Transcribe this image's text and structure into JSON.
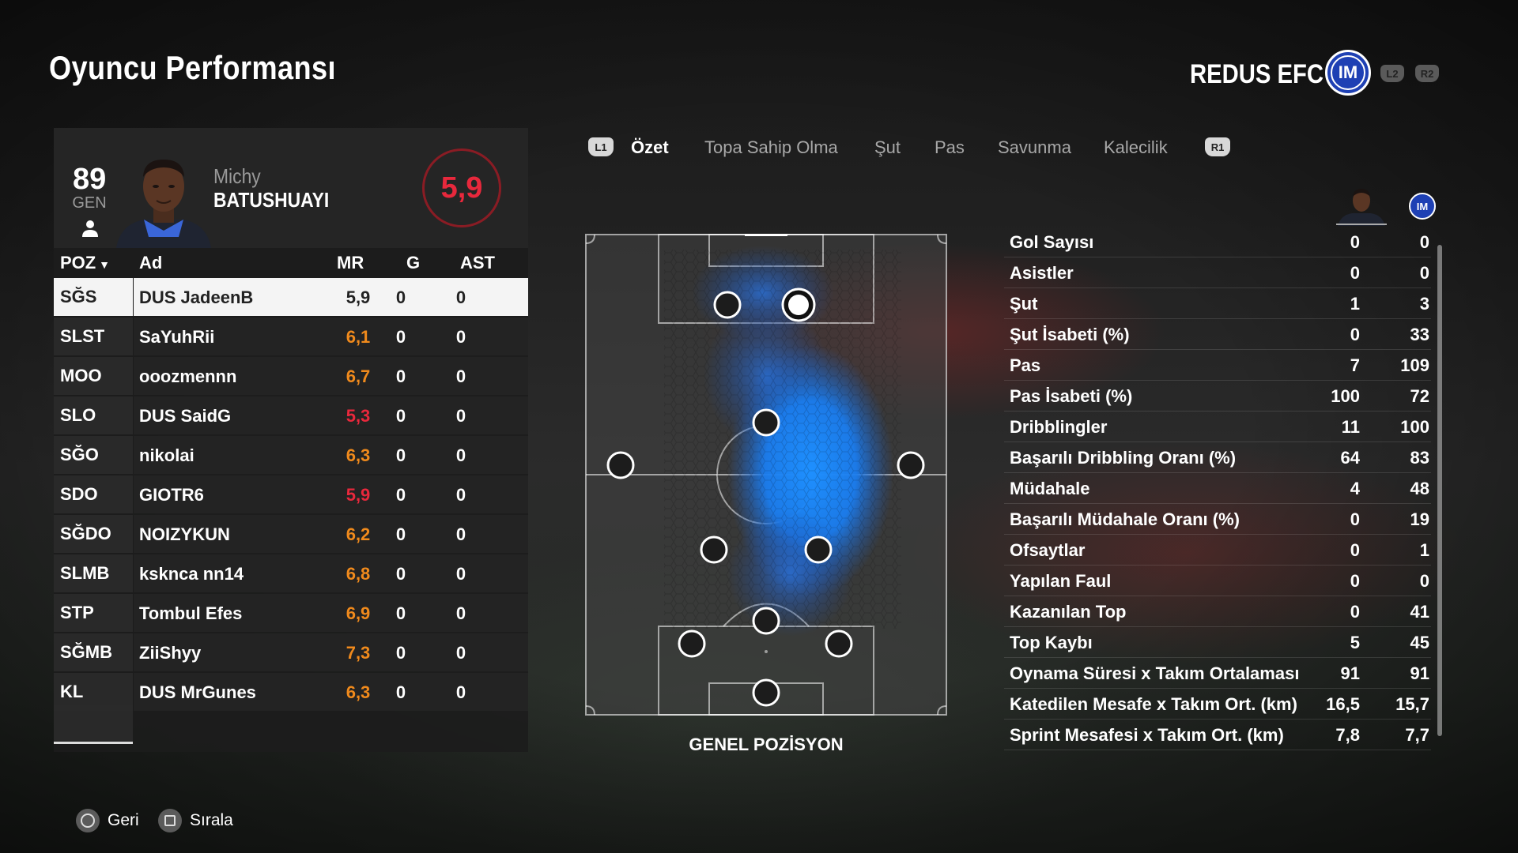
{
  "header": {
    "title": "Oyuncu Performansı",
    "team_name": "REDUS EFC",
    "team_badge_letters": "IM",
    "chip_l2": "L2",
    "chip_r2": "R2"
  },
  "player": {
    "overall": "89",
    "gen_label": "GEN",
    "first_name": "Michy",
    "last_name": "BATUSHUAYI",
    "match_rating": "5,9"
  },
  "table": {
    "headers": {
      "pos": "POZ",
      "name": "Ad",
      "mr": "MR",
      "g": "G",
      "ast": "AST"
    },
    "rows": [
      {
        "pos": "SĞS",
        "name": "DUS JadeenB",
        "mr": "5,9",
        "g": "0",
        "ast": "0",
        "mr_tone": "white"
      },
      {
        "pos": "SLST",
        "name": "SaYuhRii",
        "mr": "6,1",
        "g": "0",
        "ast": "0",
        "mr_tone": "orange"
      },
      {
        "pos": "MOO",
        "name": "ooozmennn",
        "mr": "6,7",
        "g": "0",
        "ast": "0",
        "mr_tone": "orange"
      },
      {
        "pos": "SLO",
        "name": "DUS SaidG",
        "mr": "5,3",
        "g": "0",
        "ast": "0",
        "mr_tone": "red"
      },
      {
        "pos": "SĞO",
        "name": "nikolai",
        "mr": "6,3",
        "g": "0",
        "ast": "0",
        "mr_tone": "orange"
      },
      {
        "pos": "SDO",
        "name": "GIOTR6",
        "mr": "5,9",
        "g": "0",
        "ast": "0",
        "mr_tone": "red"
      },
      {
        "pos": "SĞDO",
        "name": "NOIZYKUN",
        "mr": "6,2",
        "g": "0",
        "ast": "0",
        "mr_tone": "orange"
      },
      {
        "pos": "SLMB",
        "name": "ksknca nn14",
        "mr": "6,8",
        "g": "0",
        "ast": "0",
        "mr_tone": "orange"
      },
      {
        "pos": "STP",
        "name": "Tombul Efes",
        "mr": "6,9",
        "g": "0",
        "ast": "0",
        "mr_tone": "orange"
      },
      {
        "pos": "SĞMB",
        "name": "ZiiShyy",
        "mr": "7,3",
        "g": "0",
        "ast": "0",
        "mr_tone": "orange"
      },
      {
        "pos": "KL",
        "name": "DUS MrGunes",
        "mr": "6,3",
        "g": "0",
        "ast": "0",
        "mr_tone": "orange"
      }
    ]
  },
  "tabs": {
    "l1": "L1",
    "r1": "R1",
    "items": [
      "Özet",
      "Topa Sahip Olma",
      "Şut",
      "Pas",
      "Savunma",
      "Kalecilik"
    ],
    "active_index": 0
  },
  "pitch": {
    "label": "GENEL POZİSYON"
  },
  "stats": [
    {
      "label": "Gol Sayısı",
      "player": "0",
      "team": "0"
    },
    {
      "label": "Asistler",
      "player": "0",
      "team": "0"
    },
    {
      "label": "Şut",
      "player": "1",
      "team": "3"
    },
    {
      "label": "Şut İsabeti (%)",
      "player": "0",
      "team": "33"
    },
    {
      "label": "Pas",
      "player": "7",
      "team": "109"
    },
    {
      "label": "Pas İsabeti (%)",
      "player": "100",
      "team": "72"
    },
    {
      "label": "Dribblingler",
      "player": "11",
      "team": "100"
    },
    {
      "label": "Başarılı Dribbling Oranı (%)",
      "player": "64",
      "team": "83"
    },
    {
      "label": "Müdahale",
      "player": "4",
      "team": "48"
    },
    {
      "label": "Başarılı Müdahale Oranı (%)",
      "player": "0",
      "team": "19"
    },
    {
      "label": "Ofsaytlar",
      "player": "0",
      "team": "1"
    },
    {
      "label": "Yapılan Faul",
      "player": "0",
      "team": "0"
    },
    {
      "label": "Kazanılan Top",
      "player": "0",
      "team": "41"
    },
    {
      "label": "Top Kaybı",
      "player": "5",
      "team": "45"
    },
    {
      "label": "Oynama Süresi x Takım Ortalaması",
      "player": "91",
      "team": "91"
    },
    {
      "label": "Katedilen Mesafe x Takım Ort. (km)",
      "player": "16,5",
      "team": "15,7"
    },
    {
      "label": "Sprint Mesafesi x Takım Ort. (km)",
      "player": "7,8",
      "team": "7,7"
    }
  ],
  "footer": {
    "back_label": "Geri",
    "sort_label": "Sırala"
  },
  "colors": {
    "rating_red": "#e8283c",
    "rating_orange": "#f08a1c",
    "heatmap_blue": "#1e90ff",
    "team_blue": "#1e40b4"
  }
}
